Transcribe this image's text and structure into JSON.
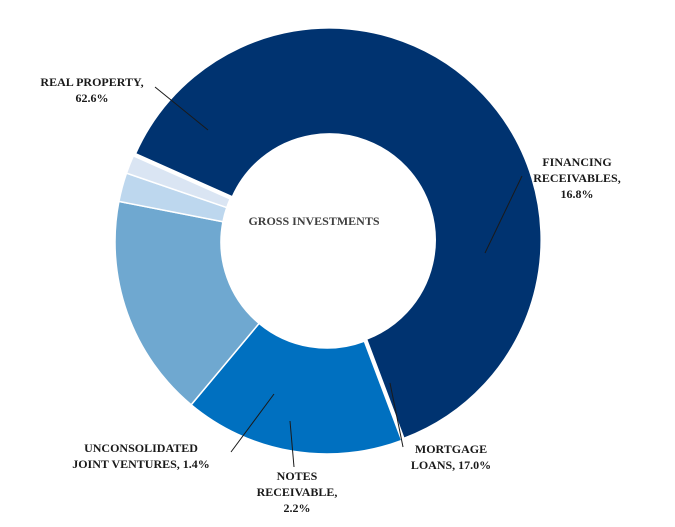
{
  "chart_data": {
    "type": "pie",
    "donut": true,
    "center_label": "GROSS INVESTMENTS",
    "slices": [
      {
        "name": "REAL PROPERTY",
        "value": 62.6,
        "label_lines": [
          "REAL PROPERTY,",
          "62.6%"
        ],
        "color": "#003370"
      },
      {
        "name": "FINANCING RECEIVABLES",
        "value": 16.8,
        "label_lines": [
          "FINANCING",
          "RECEIVABLES,",
          "16.8%"
        ],
        "color": "#0070C0"
      },
      {
        "name": "MORTGAGE LOANS",
        "value": 17.0,
        "label_lines": [
          "MORTGAGE",
          "LOANS, 17.0%"
        ],
        "color": "#6FA8D0"
      },
      {
        "name": "NOTES RECEIVABLE",
        "value": 2.2,
        "label_lines": [
          "NOTES",
          "RECEIVABLE,",
          "2.2%"
        ],
        "color": "#BDD7EE"
      },
      {
        "name": "UNCONSOLIDATED JOINT VENTURES",
        "value": 1.4,
        "label_lines": [
          "UNCONSOLIDATED",
          "JOINT VENTURES, 1.4%"
        ],
        "color": "#DAE5F3"
      }
    ],
    "legend": "none"
  }
}
